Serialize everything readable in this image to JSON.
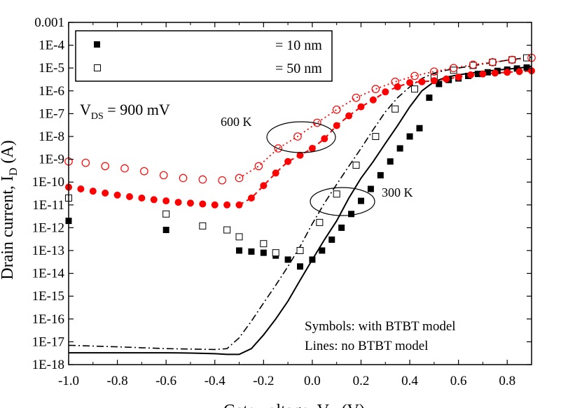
{
  "chart_data": {
    "type": "scatter",
    "ylog": true,
    "xlim": [
      -1.0,
      0.9
    ],
    "ylim": [
      1e-18,
      0.001
    ],
    "ylabel_visible": "Drain current, I",
    "ylabel_sub": "D",
    "ylabel_unit": " (A)",
    "xlabel_visible": "Gate voltage, V",
    "xlabel_sub": "G",
    "xlabel_unit": " (V)",
    "x_ticks": [
      -1.0,
      -0.8,
      -0.6,
      -0.4,
      -0.2,
      0.0,
      0.2,
      0.4,
      0.6,
      0.8
    ],
    "x_tick_labels": [
      "-1.0",
      "-0.8",
      "-0.6",
      "-0.4",
      "-0.2",
      "0.0",
      "0.2",
      "0.4",
      "0.6",
      "0.8"
    ],
    "y_ticks": [
      0.001,
      0.0001,
      1e-05,
      1e-06,
      1e-07,
      1e-08,
      1e-09,
      1e-10,
      1e-11,
      1e-12,
      1e-13,
      1e-14,
      1e-15,
      1e-16,
      1e-17,
      1e-18
    ],
    "y_tick_labels": [
      "0.001",
      "1E-4",
      "1E-5",
      "1E-6",
      "1E-7",
      "1E-8",
      "1E-9",
      "1E-10",
      "1E-11",
      "1E-12",
      "1E-13",
      "1E-14",
      "1E-15",
      "1E-16",
      "1E-17",
      "1E-18"
    ],
    "legend": [
      {
        "marker": "filled-square",
        "label": "= 10 nm"
      },
      {
        "marker": "open-square",
        "label": "= 50 nm"
      }
    ],
    "annotations": {
      "vds_main": "V",
      "vds_sub": "DS",
      "vds_value": " = 900 mV",
      "label_600k": "600 K",
      "label_300k": "300 K",
      "note_symbols": "Symbols: with BTBT model",
      "note_lines": "Lines: no BTBT model"
    },
    "series": [
      {
        "style": "black-filled-square",
        "color": "#000000",
        "x": [
          -1.0,
          -0.6,
          -0.3,
          -0.25,
          -0.2,
          -0.15,
          -0.1,
          -0.05,
          0.0,
          0.04,
          0.08,
          0.12,
          0.16,
          0.2,
          0.24,
          0.28,
          0.32,
          0.36,
          0.4,
          0.44,
          0.48,
          0.52,
          0.56,
          0.6,
          0.64,
          0.68,
          0.72,
          0.76,
          0.8,
          0.84,
          0.88
        ],
        "y": [
          2e-12,
          8e-13,
          1e-13,
          9e-14,
          8e-14,
          6e-14,
          4e-14,
          2e-14,
          4e-14,
          1e-13,
          3e-13,
          1e-12,
          4e-12,
          1.5e-11,
          5e-11,
          2e-10,
          8e-10,
          3e-09,
          1e-08,
          2.3e-08,
          5e-07,
          2e-06,
          3e-06,
          3.5e-06,
          4.5e-06,
          5.5e-06,
          6.5e-06,
          7.5e-06,
          8.5e-06,
          9.5e-06,
          1.05e-05
        ]
      },
      {
        "style": "black-open-square",
        "color": "#000000",
        "x": [
          -1.0,
          -0.6,
          -0.45,
          -0.35,
          -0.3,
          -0.2,
          -0.15,
          -0.05,
          0.03,
          0.1,
          0.18,
          0.26,
          0.34,
          0.42,
          0.5,
          0.58,
          0.66,
          0.74,
          0.82,
          0.88
        ],
        "y": [
          2e-11,
          4e-12,
          1.2e-12,
          8e-13,
          4e-13,
          2e-13,
          8e-14,
          1e-13,
          1.7e-12,
          3e-11,
          5.5e-10,
          1e-08,
          1.6e-07,
          1.2e-06,
          4e-06,
          8e-06,
          1.3e-05,
          1.8e-05,
          2.3e-05,
          2.8e-05
        ]
      },
      {
        "style": "red-filled-circle",
        "color": "#ff0000",
        "x": [
          -1.0,
          -0.95,
          -0.9,
          -0.85,
          -0.8,
          -0.75,
          -0.7,
          -0.65,
          -0.6,
          -0.55,
          -0.5,
          -0.45,
          -0.4,
          -0.35,
          -0.3,
          -0.25,
          -0.2,
          -0.15,
          -0.1,
          -0.05,
          0.0,
          0.05,
          0.1,
          0.15,
          0.2,
          0.25,
          0.3,
          0.35,
          0.4,
          0.45,
          0.5,
          0.55,
          0.6,
          0.65,
          0.7,
          0.75,
          0.8,
          0.85,
          0.9
        ],
        "y": [
          6e-11,
          5e-11,
          4e-11,
          3.3e-11,
          2.7e-11,
          2.3e-11,
          2e-11,
          1.7e-11,
          1.5e-11,
          1.3e-11,
          1.2e-11,
          1.1e-11,
          1e-11,
          1e-11,
          1e-11,
          2e-11,
          7e-11,
          2.5e-10,
          8e-10,
          1.5e-09,
          3e-09,
          8e-09,
          3e-08,
          8e-08,
          2e-07,
          4e-07,
          9e-07,
          1.5e-06,
          2.3e-06,
          2.5e-06,
          2.8e-06,
          3.3e-06,
          4e-06,
          5e-06,
          5.5e-06,
          6e-06,
          6.5e-06,
          7e-06,
          7.5e-06
        ]
      },
      {
        "style": "red-open-circle",
        "color": "#ff0000",
        "x": [
          -1.0,
          -0.93,
          -0.85,
          -0.77,
          -0.69,
          -0.61,
          -0.53,
          -0.45,
          -0.37,
          -0.3,
          -0.22,
          -0.14,
          -0.06,
          0.02,
          0.1,
          0.18,
          0.26,
          0.34,
          0.42,
          0.5,
          0.58,
          0.66,
          0.74,
          0.82,
          0.9
        ],
        "y": [
          8e-10,
          7e-10,
          5e-10,
          4e-10,
          3e-10,
          2e-10,
          1.5e-10,
          1.3e-10,
          1.2e-10,
          1.5e-10,
          5e-10,
          3e-09,
          1e-08,
          4e-08,
          1.5e-07,
          5e-07,
          1.2e-06,
          2.5e-06,
          4.5e-06,
          7e-06,
          1e-05,
          1.4e-05,
          1.8e-05,
          2.3e-05,
          2.8e-05
        ]
      },
      {
        "style": "black-solid-line",
        "color": "#000000",
        "x": [
          -1.0,
          -0.9,
          -0.8,
          -0.7,
          -0.6,
          -0.5,
          -0.4,
          -0.35,
          -0.3,
          -0.25,
          -0.2,
          -0.15,
          -0.1,
          -0.05,
          0.0,
          0.05,
          0.1,
          0.15,
          0.2,
          0.25,
          0.3,
          0.35,
          0.4,
          0.45,
          0.5,
          0.55,
          0.6,
          0.65,
          0.7,
          0.75,
          0.8,
          0.85,
          0.9
        ],
        "y": [
          3.3e-18,
          3.3e-18,
          3.3e-18,
          3.3e-18,
          3.3e-18,
          3.2e-18,
          3e-18,
          2.8e-18,
          2.8e-18,
          5e-18,
          2e-17,
          1e-16,
          6e-16,
          5e-15,
          4e-14,
          3e-13,
          2e-12,
          2e-11,
          1.5e-10,
          8e-10,
          5e-09,
          3e-08,
          2e-07,
          1e-06,
          2.5e-06,
          4e-06,
          5e-06,
          6e-06,
          7e-06,
          8e-06,
          9e-06,
          1e-05,
          1.2e-05
        ]
      },
      {
        "style": "black-dashdot-line",
        "color": "#000000",
        "x": [
          -1.0,
          -0.9,
          -0.8,
          -0.7,
          -0.6,
          -0.5,
          -0.4,
          -0.35,
          -0.3,
          -0.25,
          -0.2,
          -0.15,
          -0.1,
          -0.05,
          0.0,
          0.05,
          0.1,
          0.15,
          0.2,
          0.25,
          0.3,
          0.35,
          0.4,
          0.45,
          0.5,
          0.55,
          0.6,
          0.65,
          0.7,
          0.75,
          0.8,
          0.85,
          0.9
        ],
        "y": [
          7e-18,
          6.5e-18,
          6e-18,
          5.5e-18,
          5e-18,
          4.8e-18,
          4.6e-18,
          5e-18,
          1.5e-17,
          8e-17,
          5e-16,
          3e-15,
          2e-14,
          1.5e-13,
          1.5e-12,
          1.2e-11,
          8e-11,
          5e-10,
          3e-09,
          2e-08,
          1.2e-07,
          5e-07,
          1.5e-06,
          3.5e-06,
          6e-06,
          8e-06,
          1e-05,
          1.2e-05,
          1.5e-05,
          1.8e-05,
          2.2e-05,
          2.6e-05,
          3e-05
        ]
      },
      {
        "style": "red-dashed-line",
        "color": "#ff0000",
        "x": [
          -0.3,
          -0.25,
          -0.2,
          -0.15,
          -0.1,
          -0.05,
          0.0,
          0.05,
          0.1,
          0.15,
          0.2,
          0.25,
          0.3,
          0.35,
          0.4,
          0.45,
          0.5,
          0.55,
          0.6,
          0.65,
          0.7,
          0.75,
          0.8,
          0.85,
          0.9
        ],
        "y": [
          1e-11,
          2e-11,
          7e-11,
          2.5e-10,
          8e-10,
          1.5e-09,
          3e-09,
          8e-09,
          3e-08,
          8e-08,
          2e-07,
          4e-07,
          9e-07,
          1.5e-06,
          2.3e-06,
          2.5e-06,
          2.8e-06,
          3.3e-06,
          4e-06,
          5e-06,
          5.5e-06,
          6e-06,
          6.5e-06,
          7e-06,
          7.5e-06
        ]
      },
      {
        "style": "red-dotted-line",
        "color": "#ff0000",
        "x": [
          -0.3,
          -0.22,
          -0.14,
          -0.06,
          0.02,
          0.1,
          0.18,
          0.26,
          0.34,
          0.42,
          0.5,
          0.58,
          0.66,
          0.74,
          0.82,
          0.9
        ],
        "y": [
          1.5e-10,
          5e-10,
          3e-09,
          1e-08,
          4e-08,
          1.5e-07,
          5e-07,
          1.2e-06,
          2.5e-06,
          4.5e-06,
          7e-06,
          1e-05,
          1.4e-05,
          1.8e-05,
          2.3e-05,
          2.8e-05
        ]
      }
    ]
  }
}
